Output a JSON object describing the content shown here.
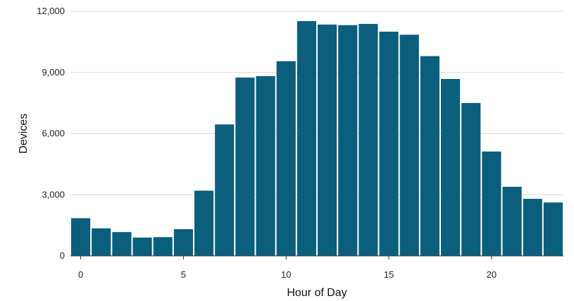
{
  "chart_data": {
    "type": "bar",
    "xlabel": "Hour of Day",
    "ylabel": "Devices",
    "categories": [
      0,
      1,
      2,
      3,
      4,
      5,
      6,
      7,
      8,
      9,
      10,
      11,
      12,
      13,
      14,
      15,
      16,
      17,
      18,
      19,
      20,
      21,
      22,
      23
    ],
    "values": [
      1850,
      1350,
      1170,
      900,
      920,
      1310,
      3200,
      6450,
      8750,
      8820,
      9550,
      11520,
      11350,
      11320,
      11380,
      11000,
      10850,
      9800,
      8680,
      7500,
      5120,
      3390,
      2800,
      2620
    ],
    "ylim": [
      0,
      12000
    ],
    "yticks": [
      0,
      3000,
      6000,
      9000,
      12000
    ],
    "ytick_labels": [
      "0",
      "3,000",
      "6,000",
      "9,000",
      "12,000"
    ],
    "xticks": [
      0,
      5,
      10,
      15,
      20
    ],
    "xtick_labels": [
      "0",
      "5",
      "10",
      "15",
      "20"
    ],
    "grid": "horizontal",
    "legend": "none",
    "colors": {
      "bar": "#0b5f7d",
      "grid": "#d9d9d9",
      "axis": "#333333"
    }
  }
}
